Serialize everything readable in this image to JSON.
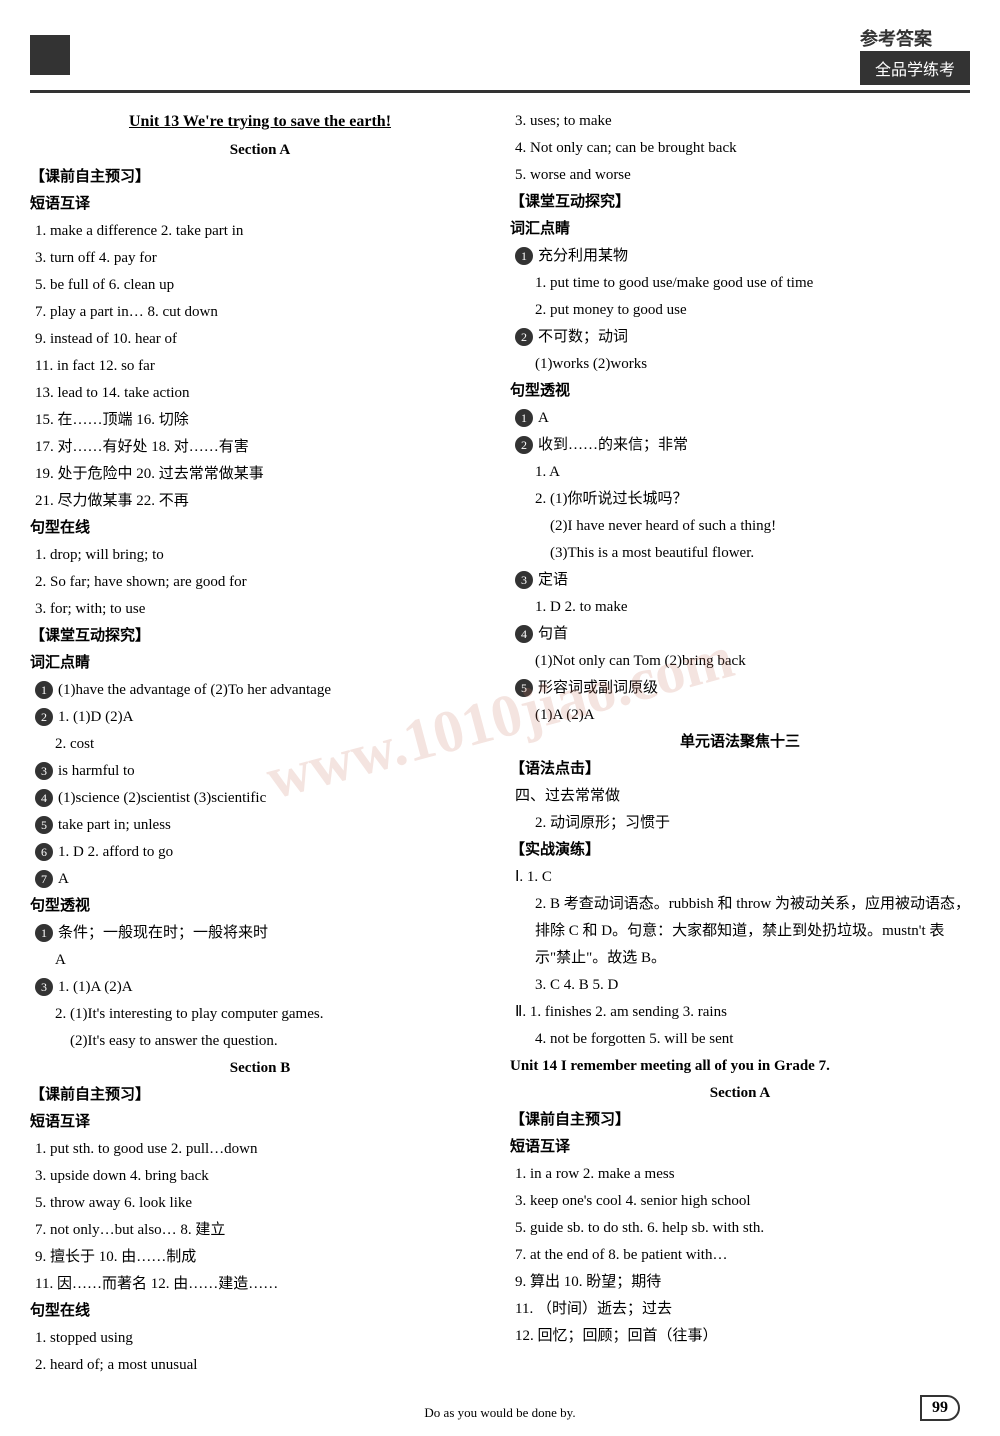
{
  "header": {
    "right_text1": "参考答案",
    "right_text2": "全品学练考"
  },
  "left": {
    "unit_title": "Unit 13  We're trying to save the earth!",
    "section_a": "Section A",
    "pre_study": "【课前自主预习】",
    "phrases_label": "短语互译",
    "phrases": [
      "1. make a difference  2. take part in",
      "3. turn off  4. pay for",
      "5. be full of  6. clean up",
      "7. play a part in…  8. cut down",
      "9. instead of  10. hear of",
      "11. in fact  12. so far",
      "13. lead to  14. take action",
      "15. 在……顶端  16. 切除",
      "17. 对……有好处  18. 对……有害",
      "19. 处于危险中  20. 过去常常做某事",
      "21. 尽力做某事  22. 不再"
    ],
    "sentence_online": "句型在线",
    "sentences": [
      "1. drop; will bring; to",
      "2. So far; have shown; are good for",
      "3. for; with; to use"
    ],
    "class_explore": "【课堂互动探究】",
    "vocab_label": "词汇点睛",
    "vocab_items": [
      {
        "num": "1",
        "text": "(1)have the advantage of  (2)To her advantage"
      },
      {
        "num": "2",
        "text": "1. (1)D  (2)A"
      },
      {
        "num": "",
        "text": "2. cost"
      },
      {
        "num": "3",
        "text": "is harmful to"
      },
      {
        "num": "4",
        "text": "(1)science  (2)scientist  (3)scientific"
      },
      {
        "num": "5",
        "text": "take part in; unless"
      },
      {
        "num": "6",
        "text": "1. D  2. afford to go"
      },
      {
        "num": "7",
        "text": "A"
      }
    ],
    "sentence_view": "句型透视",
    "sentence_view_items": [
      {
        "num": "1",
        "text": "条件；一般现在时；一般将来时"
      },
      {
        "num": "",
        "text": "A"
      },
      {
        "num": "3",
        "text": "1. (1)A  (2)A"
      },
      {
        "num": "",
        "text": "2. (1)It's interesting to play computer games."
      },
      {
        "num": "",
        "text": "(2)It's easy to answer the question."
      }
    ],
    "section_b": "Section B",
    "pre_study_b": "【课前自主预习】",
    "phrases_b_label": "短语互译",
    "phrases_b": [
      "1. put sth. to good use  2. pull…down",
      "3. upside down  4. bring back",
      "5. throw away  6. look like",
      "7. not only…but also…  8. 建立",
      "9. 擅长于  10. 由……制成",
      "11. 因……而著名  12. 由……建造……"
    ],
    "sentence_online_b": "句型在线",
    "sentences_b": [
      "1. stopped using",
      "2. heard of; a most unusual"
    ]
  },
  "right": {
    "top_items": [
      "3. uses; to make",
      "4. Not only can; can be brought back",
      "5. worse and worse"
    ],
    "class_explore": "【课堂互动探究】",
    "vocab_label": "词汇点睛",
    "vocab_items": [
      {
        "num": "1",
        "text": "充分利用某物"
      },
      {
        "num": "",
        "text": "1. put time to good use/make good use of time"
      },
      {
        "num": "",
        "text": "2. put money to good use"
      },
      {
        "num": "2",
        "text": "不可数；动词"
      },
      {
        "num": "",
        "text": "(1)works  (2)works"
      }
    ],
    "sentence_view": "句型透视",
    "sentence_view_items": [
      {
        "num": "1",
        "text": "A"
      },
      {
        "num": "2",
        "text": "收到……的来信；非常"
      },
      {
        "num": "",
        "text": "1. A"
      },
      {
        "num": "",
        "text": "2. (1)你听说过长城吗？"
      },
      {
        "num": "",
        "text": "(2)I have never heard of such a thing!"
      },
      {
        "num": "",
        "text": "(3)This is a most beautiful flower."
      },
      {
        "num": "3",
        "text": "定语"
      },
      {
        "num": "",
        "text": "1. D  2. to make"
      },
      {
        "num": "4",
        "text": "句首"
      },
      {
        "num": "",
        "text": "(1)Not only can Tom  (2)bring back"
      },
      {
        "num": "5",
        "text": "形容词或副词原级"
      },
      {
        "num": "",
        "text": "(1)A  (2)A"
      }
    ],
    "grammar_focus": "单元语法聚焦十三",
    "grammar_label": "【语法点击】",
    "grammar_items": [
      "四、过去常常做",
      "2. 动词原形；习惯于"
    ],
    "practice_label": "【实战演练】",
    "practice_items": [
      "Ⅰ. 1. C",
      "2. B  考查动词语态。rubbish 和 throw 为被动关系，应用被动语态，排除 C 和 D。句意：大家都知道，禁止到处扔垃圾。mustn't 表示\"禁止\"。故选 B。",
      "3. C  4. B  5. D",
      "Ⅱ. 1. finishes  2. am sending  3. rains",
      "4. not be forgotten  5. will be sent"
    ],
    "unit14_title": "Unit 14  I remember meeting all of you in Grade 7.",
    "section_a_14": "Section A",
    "pre_study_14": "【课前自主预习】",
    "phrases_14_label": "短语互译",
    "phrases_14": [
      "1. in a row  2. make a mess",
      "3. keep one's cool  4. senior high school",
      "5. guide sb. to do sth.  6. help sb. with sth.",
      "7. at the end of  8. be patient with…",
      "9. 算出  10. 盼望；期待",
      "11. （时间）逝去；过去",
      "12. 回忆；回顾；回首（往事）"
    ]
  },
  "footer": {
    "text": "Do as you would be done by.",
    "page": "99"
  },
  "watermark": "www.1010jiao.com"
}
